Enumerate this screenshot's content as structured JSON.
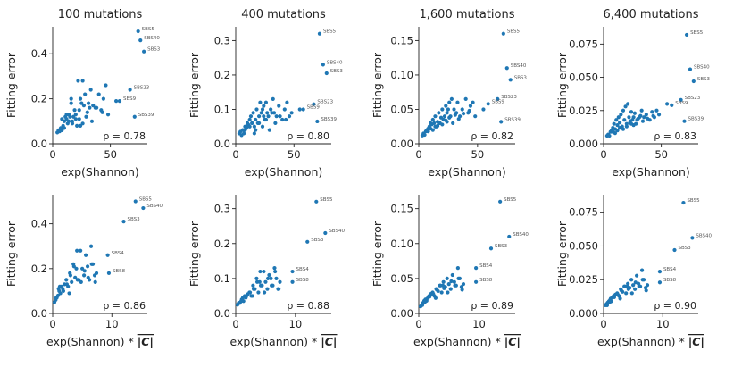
{
  "chart_data": [
    {
      "type": "scatter",
      "title": "100 mutations",
      "xlabel": "exp(Shannon)",
      "xlabel_suffix": "",
      "ylabel": "Fitting error",
      "xlim": [
        0,
        82
      ],
      "ylim": [
        0,
        0.52
      ],
      "xticks": [
        0,
        50
      ],
      "xtick_labels": [
        "0",
        "50"
      ],
      "yticks": [
        0,
        0.2,
        0.4
      ],
      "ytick_labels": [
        "0.0",
        "0.2",
        "0.4"
      ],
      "rho": "ρ = 0.78",
      "x": [
        4,
        5,
        6,
        7,
        8,
        9,
        10,
        11,
        12,
        13,
        14,
        15,
        16,
        17,
        18,
        19,
        20,
        21,
        22,
        23,
        24,
        25,
        26,
        27,
        28,
        30,
        32,
        33,
        35,
        37,
        40,
        42,
        44,
        46,
        48,
        55,
        8,
        10,
        14,
        17,
        20,
        23,
        26,
        29,
        31,
        34,
        38,
        43,
        12,
        16,
        24
      ],
      "y": [
        0.05,
        0.06,
        0.055,
        0.07,
        0.06,
        0.08,
        0.1,
        0.12,
        0.11,
        0.09,
        0.13,
        0.12,
        0.18,
        0.1,
        0.12,
        0.15,
        0.11,
        0.08,
        0.28,
        0.15,
        0.2,
        0.18,
        0.28,
        0.17,
        0.22,
        0.14,
        0.16,
        0.24,
        0.17,
        0.16,
        0.22,
        0.15,
        0.2,
        0.26,
        0.13,
        0.19,
        0.11,
        0.07,
        0.1,
        0.09,
        0.13,
        0.11,
        0.09,
        0.12,
        0.18,
        0.1,
        0.16,
        0.14,
        0.13,
        0.2,
        0.08
      ],
      "labeled_points": [
        {
          "label": "SBS5",
          "x": 74,
          "y": 0.5
        },
        {
          "label": "SBS40",
          "x": 76,
          "y": 0.46
        },
        {
          "label": "SBS3",
          "x": 79,
          "y": 0.41
        },
        {
          "label": "SBS23",
          "x": 67,
          "y": 0.24
        },
        {
          "label": "SBS9",
          "x": 58,
          "y": 0.19
        },
        {
          "label": "SBS39",
          "x": 71,
          "y": 0.12
        }
      ]
    },
    {
      "type": "scatter",
      "title": "400 mutations",
      "xlabel": "exp(Shannon)",
      "xlabel_suffix": "",
      "ylabel": "Fitting error",
      "xlim": [
        0,
        82
      ],
      "ylim": [
        0,
        0.34
      ],
      "xticks": [
        0,
        50
      ],
      "xtick_labels": [
        "0",
        "50"
      ],
      "yticks": [
        0,
        0.1,
        0.2,
        0.3
      ],
      "ytick_labels": [
        "0.0",
        "0.1",
        "0.2",
        "0.3"
      ],
      "rho": "ρ = 0.80",
      "x": [
        3,
        4,
        5,
        6,
        7,
        8,
        9,
        10,
        11,
        12,
        13,
        14,
        15,
        16,
        17,
        18,
        19,
        20,
        21,
        22,
        23,
        24,
        25,
        26,
        27,
        28,
        30,
        32,
        33,
        35,
        37,
        40,
        42,
        44,
        46,
        48,
        55,
        8,
        10,
        14,
        17,
        20,
        23,
        26,
        29,
        31,
        34,
        38,
        43,
        12,
        16,
        24
      ],
      "y": [
        0.03,
        0.035,
        0.025,
        0.04,
        0.03,
        0.05,
        0.045,
        0.06,
        0.055,
        0.07,
        0.08,
        0.06,
        0.09,
        0.05,
        0.07,
        0.1,
        0.06,
        0.08,
        0.12,
        0.09,
        0.1,
        0.11,
        0.07,
        0.12,
        0.09,
        0.08,
        0.1,
        0.13,
        0.09,
        0.08,
        0.11,
        0.07,
        0.1,
        0.12,
        0.08,
        0.09,
        0.1,
        0.04,
        0.05,
        0.06,
        0.04,
        0.06,
        0.05,
        0.07,
        0.04,
        0.09,
        0.06,
        0.08,
        0.07,
        0.05,
        0.03,
        0.08
      ],
      "labeled_points": [
        {
          "label": "SBS5",
          "x": 72,
          "y": 0.32
        },
        {
          "label": "SBS40",
          "x": 75,
          "y": 0.23
        },
        {
          "label": "SBS3",
          "x": 78,
          "y": 0.205
        },
        {
          "label": "SBS23",
          "x": 67,
          "y": 0.115
        },
        {
          "label": "SBS9",
          "x": 58,
          "y": 0.1
        },
        {
          "label": "SBS39",
          "x": 70,
          "y": 0.065
        }
      ]
    },
    {
      "type": "scatter",
      "title": "1,600 mutations",
      "xlabel": "exp(Shannon)",
      "xlabel_suffix": "",
      "ylabel": "Fitting error",
      "xlim": [
        0,
        82
      ],
      "ylim": [
        0,
        0.17
      ],
      "xticks": [
        0,
        50
      ],
      "xtick_labels": [
        "0",
        "50"
      ],
      "yticks": [
        0,
        0.05,
        0.1,
        0.15
      ],
      "ytick_labels": [
        "0.00",
        "0.05",
        "0.10",
        "0.15"
      ],
      "rho": "ρ = 0.82",
      "x": [
        3,
        4,
        5,
        6,
        7,
        8,
        9,
        10,
        11,
        12,
        13,
        14,
        15,
        16,
        17,
        18,
        19,
        20,
        21,
        22,
        23,
        24,
        25,
        26,
        27,
        28,
        30,
        32,
        33,
        35,
        37,
        40,
        42,
        44,
        46,
        48,
        55,
        8,
        10,
        14,
        17,
        20,
        23,
        26,
        29,
        31,
        34,
        38,
        43,
        12,
        16,
        24
      ],
      "y": [
        0.012,
        0.015,
        0.013,
        0.018,
        0.02,
        0.022,
        0.025,
        0.03,
        0.028,
        0.035,
        0.03,
        0.04,
        0.025,
        0.032,
        0.045,
        0.03,
        0.038,
        0.05,
        0.035,
        0.04,
        0.055,
        0.045,
        0.05,
        0.06,
        0.04,
        0.065,
        0.05,
        0.045,
        0.06,
        0.04,
        0.05,
        0.065,
        0.045,
        0.055,
        0.06,
        0.04,
        0.05,
        0.018,
        0.022,
        0.025,
        0.03,
        0.028,
        0.034,
        0.038,
        0.03,
        0.042,
        0.036,
        0.044,
        0.048,
        0.02,
        0.026,
        0.032
      ],
      "labeled_points": [
        {
          "label": "SBS5",
          "x": 72,
          "y": 0.16
        },
        {
          "label": "SBS40",
          "x": 75,
          "y": 0.11
        },
        {
          "label": "SBS3",
          "x": 78,
          "y": 0.093
        },
        {
          "label": "SBS23",
          "x": 67,
          "y": 0.065
        },
        {
          "label": "SBS9",
          "x": 59,
          "y": 0.058
        },
        {
          "label": "SBS39",
          "x": 70,
          "y": 0.032
        }
      ]
    },
    {
      "type": "scatter",
      "title": "6,400 mutations",
      "xlabel": "exp(Shannon)",
      "xlabel_suffix": "",
      "ylabel": "Fitting error",
      "xlim": [
        0,
        82
      ],
      "ylim": [
        0,
        0.088
      ],
      "xticks": [
        0,
        50
      ],
      "xtick_labels": [
        "0",
        "50"
      ],
      "yticks": [
        0,
        0.025,
        0.05,
        0.075
      ],
      "ytick_labels": [
        "0.000",
        "0.025",
        "0.050",
        "0.075"
      ],
      "rho": "ρ = 0.83",
      "x": [
        3,
        4,
        5,
        6,
        7,
        8,
        9,
        10,
        11,
        12,
        13,
        14,
        15,
        16,
        17,
        18,
        19,
        20,
        21,
        22,
        23,
        24,
        25,
        26,
        27,
        28,
        30,
        32,
        33,
        35,
        37,
        40,
        42,
        44,
        46,
        48,
        55,
        8,
        10,
        14,
        17,
        20,
        23,
        26,
        29,
        31,
        34,
        38,
        43,
        12,
        16,
        24
      ],
      "y": [
        0.006,
        0.007,
        0.006,
        0.009,
        0.01,
        0.012,
        0.015,
        0.011,
        0.018,
        0.014,
        0.02,
        0.016,
        0.022,
        0.012,
        0.025,
        0.018,
        0.028,
        0.015,
        0.03,
        0.02,
        0.017,
        0.024,
        0.018,
        0.02,
        0.023,
        0.015,
        0.019,
        0.021,
        0.025,
        0.02,
        0.022,
        0.018,
        0.024,
        0.02,
        0.025,
        0.022,
        0.03,
        0.009,
        0.008,
        0.012,
        0.011,
        0.013,
        0.016,
        0.014,
        0.018,
        0.02,
        0.017,
        0.019,
        0.021,
        0.01,
        0.013,
        0.015
      ],
      "labeled_points": [
        {
          "label": "SBS5",
          "x": 72,
          "y": 0.082
        },
        {
          "label": "SBS40",
          "x": 75,
          "y": 0.056
        },
        {
          "label": "SBS3",
          "x": 78,
          "y": 0.047
        },
        {
          "label": "SBS23",
          "x": 67,
          "y": 0.033
        },
        {
          "label": "SBS9",
          "x": 59,
          "y": 0.029
        },
        {
          "label": "SBS39",
          "x": 70,
          "y": 0.017
        }
      ]
    },
    {
      "type": "scatter",
      "title": "",
      "xlabel": "exp(Shannon) * ",
      "xlabel_suffix": "|C|",
      "ylabel": "Fitting error",
      "xlim": [
        0,
        16
      ],
      "ylim": [
        0,
        0.53
      ],
      "xticks": [
        0,
        10
      ],
      "xtick_labels": [
        "0",
        "10"
      ],
      "yticks": [
        0,
        0.2,
        0.4
      ],
      "ytick_labels": [
        "0.0",
        "0.2",
        "0.4"
      ],
      "rho": "ρ = 0.86",
      "x": [
        0.3,
        0.5,
        0.7,
        0.9,
        1.1,
        1.3,
        1.5,
        1.7,
        2,
        2.3,
        2.6,
        2.9,
        3.2,
        3.5,
        3.8,
        4.1,
        4.4,
        4.7,
        5,
        5.3,
        5.6,
        5.9,
        6.2,
        6.5,
        6.8,
        7.1,
        7.4,
        1.2,
        1.8,
        2.4,
        3,
        3.6,
        4.2,
        4.8,
        5.4,
        6,
        6.6,
        7.2,
        1,
        2.8,
        0.6,
        4
      ],
      "y": [
        0.05,
        0.06,
        0.07,
        0.08,
        0.1,
        0.09,
        0.12,
        0.11,
        0.13,
        0.15,
        0.12,
        0.18,
        0.14,
        0.22,
        0.16,
        0.28,
        0.15,
        0.28,
        0.2,
        0.17,
        0.26,
        0.21,
        0.15,
        0.3,
        0.22,
        0.17,
        0.18,
        0.12,
        0.1,
        0.13,
        0.17,
        0.21,
        0.15,
        0.14,
        0.19,
        0.16,
        0.22,
        0.14,
        0.11,
        0.09,
        0.07,
        0.2
      ],
      "labeled_points": [
        {
          "label": "SBS5",
          "x": 14,
          "y": 0.5
        },
        {
          "label": "SBS40",
          "x": 15.3,
          "y": 0.47
        },
        {
          "label": "SBS3",
          "x": 12,
          "y": 0.41
        },
        {
          "label": "SBS4",
          "x": 9.3,
          "y": 0.26
        },
        {
          "label": "SBS8",
          "x": 9.5,
          "y": 0.18
        }
      ]
    },
    {
      "type": "scatter",
      "title": "",
      "xlabel": "exp(Shannon) * ",
      "xlabel_suffix": "|C|",
      "ylabel": "Fitting error",
      "xlim": [
        0,
        16
      ],
      "ylim": [
        0,
        0.34
      ],
      "xticks": [
        0,
        10
      ],
      "xtick_labels": [
        "0",
        "10"
      ],
      "yticks": [
        0,
        0.1,
        0.2,
        0.3
      ],
      "ytick_labels": [
        "0.0",
        "0.1",
        "0.2",
        "0.3"
      ],
      "rho": "ρ = 0.88",
      "x": [
        0.3,
        0.5,
        0.7,
        0.9,
        1.1,
        1.3,
        1.5,
        1.7,
        2,
        2.3,
        2.6,
        2.9,
        3.2,
        3.5,
        3.8,
        4.1,
        4.4,
        4.7,
        5,
        5.3,
        5.6,
        5.9,
        6.2,
        6.5,
        6.8,
        7.1,
        7.4,
        1.2,
        1.8,
        2.4,
        3,
        3.6,
        4.2,
        4.8,
        5.4,
        6,
        6.6,
        7.2,
        1,
        2.8,
        0.6,
        4
      ],
      "y": [
        0.025,
        0.03,
        0.03,
        0.035,
        0.04,
        0.035,
        0.05,
        0.045,
        0.055,
        0.06,
        0.05,
        0.08,
        0.07,
        0.1,
        0.06,
        0.12,
        0.08,
        0.12,
        0.09,
        0.07,
        0.11,
        0.1,
        0.08,
        0.13,
        0.1,
        0.07,
        0.09,
        0.045,
        0.05,
        0.06,
        0.07,
        0.09,
        0.08,
        0.06,
        0.1,
        0.08,
        0.12,
        0.07,
        0.04,
        0.05,
        0.03,
        0.09
      ],
      "labeled_points": [
        {
          "label": "SBS5",
          "x": 13.5,
          "y": 0.32
        },
        {
          "label": "SBS40",
          "x": 15,
          "y": 0.23
        },
        {
          "label": "SBS3",
          "x": 12,
          "y": 0.205
        },
        {
          "label": "SBS4",
          "x": 9.5,
          "y": 0.12
        },
        {
          "label": "SBS8",
          "x": 9.5,
          "y": 0.09
        }
      ]
    },
    {
      "type": "scatter",
      "title": "",
      "xlabel": "exp(Shannon) * ",
      "xlabel_suffix": "|C|",
      "ylabel": "Fitting error",
      "xlim": [
        0,
        16
      ],
      "ylim": [
        0,
        0.17
      ],
      "xticks": [
        0,
        10
      ],
      "xtick_labels": [
        "0",
        "10"
      ],
      "yticks": [
        0,
        0.05,
        0.1,
        0.15
      ],
      "ytick_labels": [
        "0.00",
        "0.05",
        "0.10",
        "0.15"
      ],
      "rho": "ρ = 0.89",
      "x": [
        0.3,
        0.5,
        0.7,
        0.9,
        1.1,
        1.3,
        1.5,
        1.7,
        2,
        2.3,
        2.6,
        2.9,
        3.2,
        3.5,
        3.8,
        4.1,
        4.4,
        4.7,
        5,
        5.3,
        5.6,
        5.9,
        6.2,
        6.5,
        6.8,
        7.1,
        7.4,
        1.2,
        1.8,
        2.4,
        3,
        3.6,
        4.2,
        4.8,
        5.4,
        6,
        6.6,
        7.2,
        1,
        2.8,
        0.6,
        4
      ],
      "y": [
        0.01,
        0.012,
        0.015,
        0.018,
        0.02,
        0.018,
        0.022,
        0.025,
        0.028,
        0.03,
        0.025,
        0.035,
        0.032,
        0.04,
        0.03,
        0.045,
        0.038,
        0.05,
        0.042,
        0.035,
        0.055,
        0.045,
        0.04,
        0.065,
        0.05,
        0.038,
        0.042,
        0.02,
        0.024,
        0.028,
        0.034,
        0.04,
        0.036,
        0.03,
        0.046,
        0.04,
        0.05,
        0.034,
        0.016,
        0.022,
        0.012,
        0.04
      ],
      "labeled_points": [
        {
          "label": "SBS5",
          "x": 13.5,
          "y": 0.16
        },
        {
          "label": "SBS40",
          "x": 15,
          "y": 0.11
        },
        {
          "label": "SBS3",
          "x": 12,
          "y": 0.093
        },
        {
          "label": "SBS4",
          "x": 9.5,
          "y": 0.065
        },
        {
          "label": "SBS8",
          "x": 9.5,
          "y": 0.045
        }
      ]
    },
    {
      "type": "scatter",
      "title": "",
      "xlabel": "exp(Shannon) * ",
      "xlabel_suffix": "|C|",
      "ylabel": "Fitting error",
      "xlim": [
        0,
        16
      ],
      "ylim": [
        0,
        0.088
      ],
      "xticks": [
        0,
        10
      ],
      "xtick_labels": [
        "0",
        "10"
      ],
      "yticks": [
        0,
        0.025,
        0.05,
        0.075
      ],
      "ytick_labels": [
        "0.000",
        "0.025",
        "0.050",
        "0.075"
      ],
      "rho": "ρ = 0.90",
      "x": [
        0.3,
        0.5,
        0.7,
        0.9,
        1.1,
        1.3,
        1.5,
        1.7,
        2,
        2.3,
        2.6,
        2.9,
        3.2,
        3.5,
        3.8,
        4.1,
        4.4,
        4.7,
        5,
        5.3,
        5.6,
        5.9,
        6.2,
        6.5,
        6.8,
        7.1,
        7.4,
        1.2,
        1.8,
        2.4,
        3,
        3.6,
        4.2,
        4.8,
        5.4,
        6,
        6.6,
        7.2,
        1,
        2.8,
        0.6,
        4
      ],
      "y": [
        0.006,
        0.007,
        0.008,
        0.009,
        0.01,
        0.009,
        0.012,
        0.013,
        0.014,
        0.015,
        0.013,
        0.018,
        0.016,
        0.02,
        0.015,
        0.022,
        0.019,
        0.025,
        0.021,
        0.018,
        0.028,
        0.022,
        0.02,
        0.032,
        0.025,
        0.019,
        0.021,
        0.011,
        0.012,
        0.014,
        0.017,
        0.02,
        0.018,
        0.015,
        0.023,
        0.02,
        0.025,
        0.017,
        0.008,
        0.011,
        0.006,
        0.02
      ],
      "labeled_points": [
        {
          "label": "SBS5",
          "x": 13.5,
          "y": 0.082
        },
        {
          "label": "SBS40",
          "x": 15,
          "y": 0.056
        },
        {
          "label": "SBS3",
          "x": 12,
          "y": 0.047
        },
        {
          "label": "SBS4",
          "x": 9.5,
          "y": 0.031
        },
        {
          "label": "SBS8",
          "x": 9.5,
          "y": 0.023
        }
      ]
    }
  ]
}
